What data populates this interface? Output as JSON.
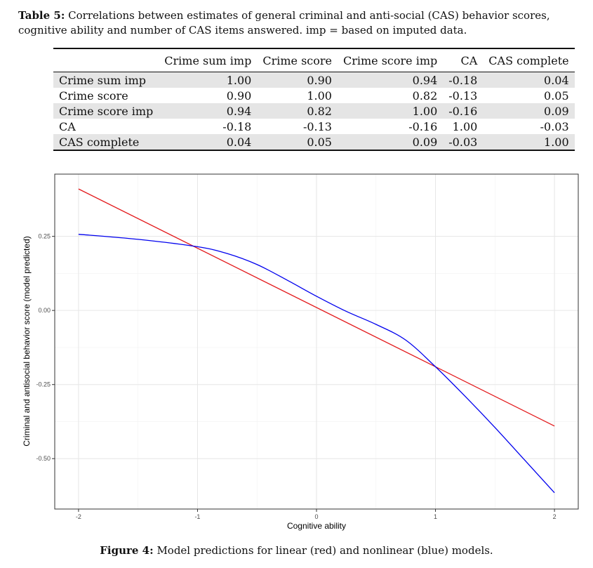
{
  "table_caption": {
    "label": "Table 5:",
    "text": "Correlations between estimates of general criminal and anti-social (CAS) behavior scores, cognitive ability and number of CAS items answered. imp = based on imputed data."
  },
  "table": {
    "headers": [
      "",
      "Crime sum imp",
      "Crime score",
      "Crime score imp",
      "CA",
      "CAS complete"
    ],
    "rows": [
      [
        "Crime sum imp",
        "1.00",
        "0.90",
        "0.94",
        "-0.18",
        "0.04"
      ],
      [
        "Crime score",
        "0.90",
        "1.00",
        "0.82",
        "-0.13",
        "0.05"
      ],
      [
        "Crime score imp",
        "0.94",
        "0.82",
        "1.00",
        "-0.16",
        "0.09"
      ],
      [
        "CA",
        "-0.18",
        "-0.13",
        "-0.16",
        "1.00",
        "-0.03"
      ],
      [
        "CAS complete",
        "0.04",
        "0.05",
        "0.09",
        "-0.03",
        "1.00"
      ]
    ]
  },
  "chart_data": {
    "type": "line",
    "xlabel": "Cognitive ability",
    "ylabel": "Criminal and antisocial behavior score (model predicted)",
    "xlim": [
      -2.2,
      2.2
    ],
    "ylim": [
      -0.67,
      0.46
    ],
    "x_ticks": [
      -2,
      -1,
      0,
      1,
      2
    ],
    "y_ticks": [
      0.25,
      0.0,
      -0.25,
      -0.5
    ],
    "x_tick_labels": [
      "-2",
      "-1",
      "0",
      "1",
      "2"
    ],
    "y_tick_labels": [
      "0.25",
      "0.00",
      "-0.25",
      "-0.50"
    ],
    "grid": true,
    "series": [
      {
        "name": "linear",
        "color": "#e31a1c",
        "x": [
          -2,
          2
        ],
        "y": [
          0.41,
          -0.39
        ]
      },
      {
        "name": "nonlinear",
        "color": "#0000ee",
        "x": [
          -2,
          -1.5,
          -1,
          -0.75,
          -0.5,
          -0.25,
          0,
          0.25,
          0.5,
          0.75,
          1,
          1.25,
          1.5,
          1.75,
          2
        ],
        "y": [
          0.257,
          0.24,
          0.215,
          0.192,
          0.155,
          0.103,
          0.048,
          -0.003,
          -0.047,
          -0.1,
          -0.19,
          -0.29,
          -0.395,
          -0.505,
          -0.615
        ]
      }
    ]
  },
  "figure_caption": {
    "label": "Figure 4:",
    "text": "Model predictions for linear (red) and nonlinear (blue) models."
  }
}
